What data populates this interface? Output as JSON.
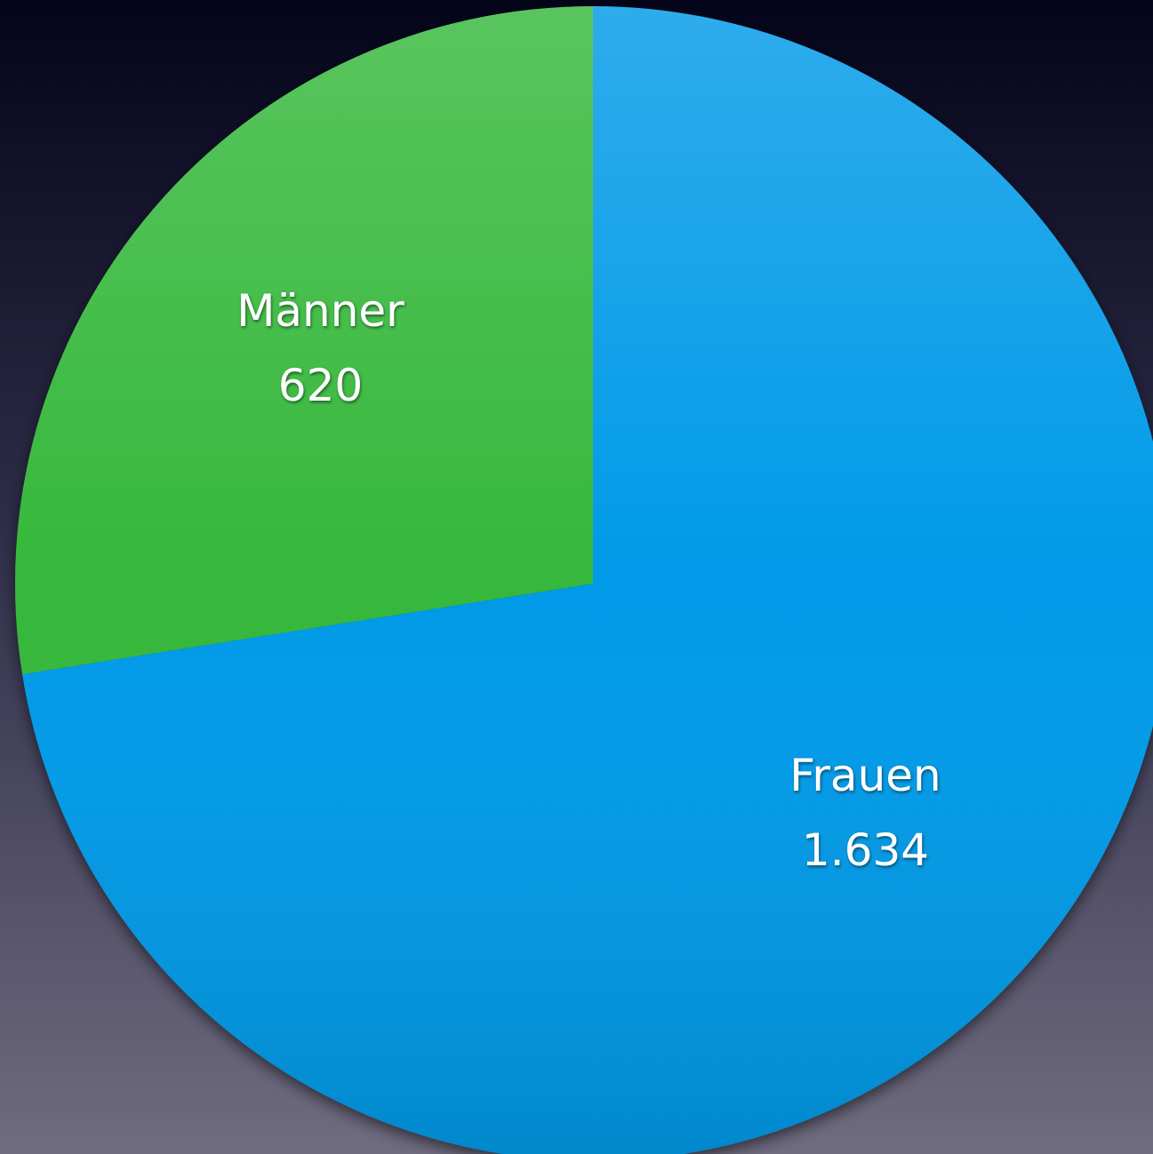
{
  "chart_data": {
    "type": "pie",
    "categories": [
      "Frauen",
      "Männer"
    ],
    "values": [
      1634,
      620
    ],
    "value_labels": [
      "1.634",
      "620"
    ],
    "colors": [
      "#009ae8",
      "#34b83a"
    ],
    "start_angle": 0,
    "direction": "clockwise"
  }
}
